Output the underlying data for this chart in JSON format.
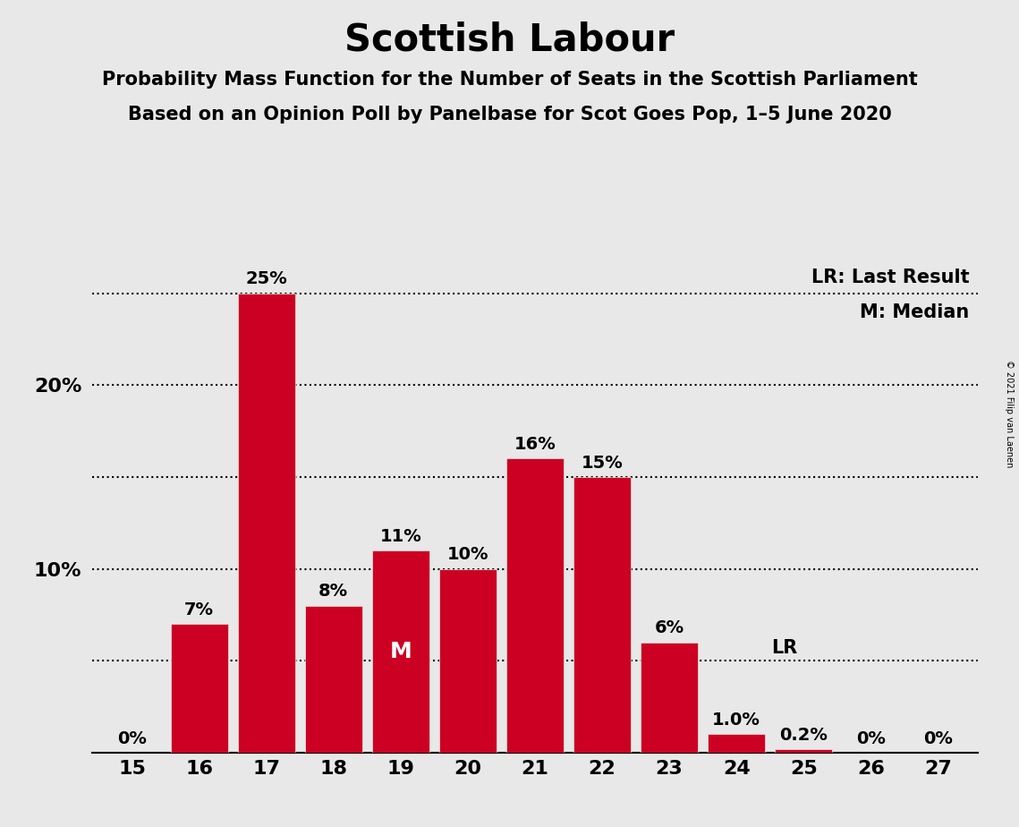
{
  "title": "Scottish Labour",
  "subtitle1": "Probability Mass Function for the Number of Seats in the Scottish Parliament",
  "subtitle2": "Based on an Opinion Poll by Panelbase for Scot Goes Pop, 1–5 June 2020",
  "copyright": "© 2021 Filip van Laenen",
  "categories": [
    15,
    16,
    17,
    18,
    19,
    20,
    21,
    22,
    23,
    24,
    25,
    26,
    27
  ],
  "values": [
    0.0,
    7.0,
    25.0,
    8.0,
    11.0,
    10.0,
    16.0,
    15.0,
    6.0,
    1.0,
    0.2,
    0.0,
    0.0
  ],
  "labels": [
    "0%",
    "7%",
    "25%",
    "8%",
    "11%",
    "10%",
    "16%",
    "15%",
    "6%",
    "1.0%",
    "0.2%",
    "0%",
    "0%"
  ],
  "bar_color": "#CC0022",
  "background_color": "#E8E8E8",
  "median_seat": 19,
  "last_result_seat": 24,
  "ylim": [
    0,
    27
  ],
  "hlines": [
    5,
    10,
    15,
    20,
    25
  ],
  "legend_lr": "LR: Last Result",
  "legend_m": "M: Median",
  "label_lr": "LR",
  "label_m": "M",
  "title_fontsize": 30,
  "subtitle_fontsize": 15,
  "tick_fontsize": 16,
  "label_fontsize": 14,
  "legend_fontsize": 15
}
